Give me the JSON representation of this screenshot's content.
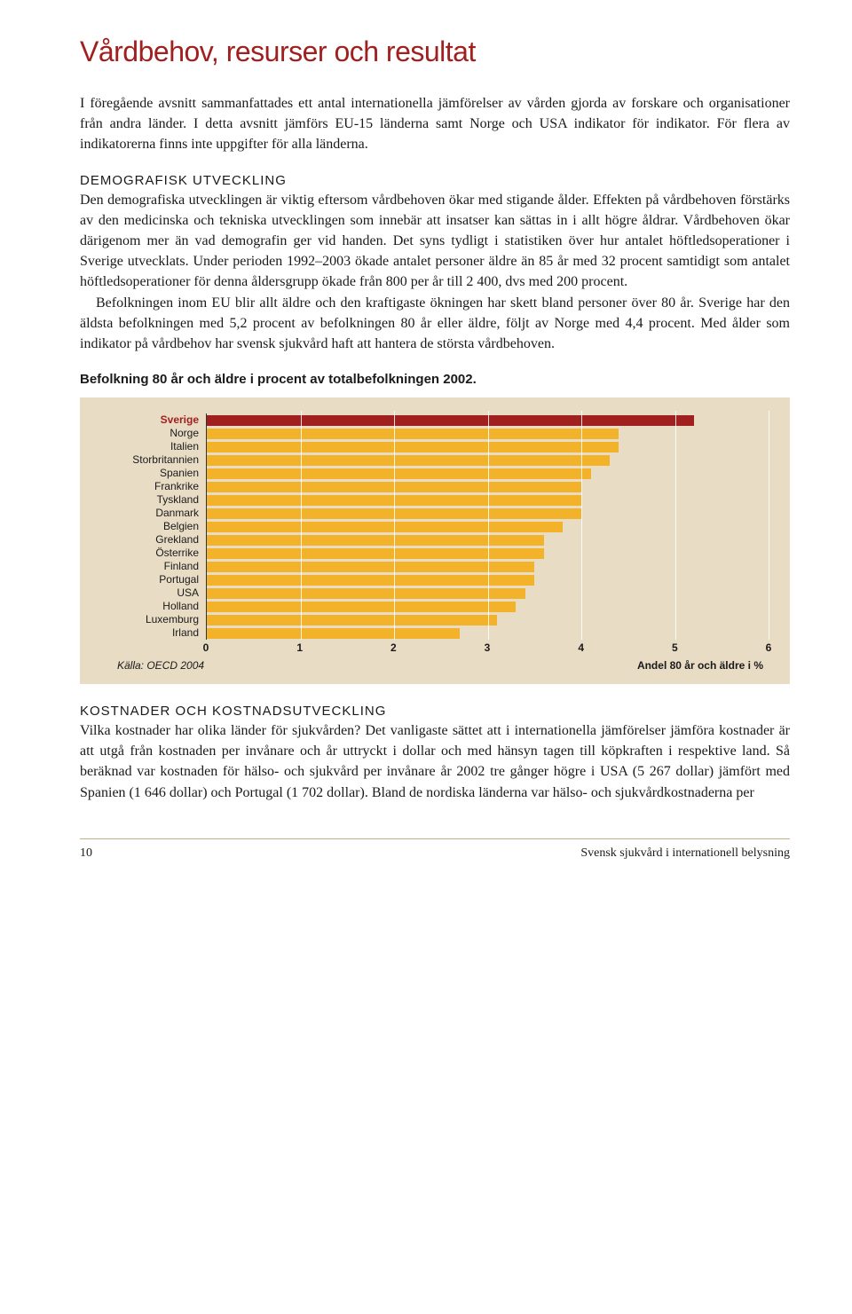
{
  "title": "Vårdbehov, resurser och resultat",
  "intro": "I föregående avsnitt sammanfattades ett antal internationella jämförelser av vården gjorda av forskare och organisationer från andra länder. I detta avsnitt jämförs EU-15 länderna samt Norge och USA indikator för indikator. För flera av indikatorerna finns inte uppgifter för alla länderna.",
  "sec1_heading": "DEMOGRAFISK UTVECKLING",
  "sec1_p1": "Den demografiska utvecklingen är viktig eftersom vårdbehoven ökar med stigande ålder. Effekten på vårdbehoven förstärks av den medicinska och tekniska utvecklingen som innebär att insatser kan sättas in i allt högre åldrar. Vårdbehoven ökar därigenom mer än vad demografin ger vid handen. Det syns tydligt i statistiken över hur antalet höftledsoperationer i Sverige utvecklats. Under perioden 1992–2003 ökade antalet personer äldre än 85 år med 32 procent samtidigt som antalet höftledsoperationer för denna åldersgrupp ökade från 800 per år till 2 400, dvs med 200 procent.",
  "sec1_p2": "Befolkningen inom EU blir allt äldre och den kraftigaste ökningen har skett bland personer över 80 år. Sverige har den äldsta befolkningen med 5,2 procent av befolkningen 80 år eller äldre, följt av Norge med 4,4 procent. Med ålder som indikator på vårdbehov har svensk sjukvård haft att hantera de största vårdbehoven.",
  "chart": {
    "caption": "Befolkning 80 år och äldre i procent av totalbefolkningen 2002.",
    "source": "Källa: OECD 2004",
    "axis_title": "Andel 80 år och äldre i %",
    "xmax": 6,
    "xticks": [
      0,
      1,
      2,
      3,
      4,
      5,
      6
    ],
    "highlight_color": "#a02020",
    "bar_color": "#f2b32a",
    "panel_bg": "#e8dcc5",
    "gridline_color": "#ffffff",
    "categories": [
      {
        "label": "Sverige",
        "value": 5.2,
        "highlight": true
      },
      {
        "label": "Norge",
        "value": 4.4,
        "highlight": false
      },
      {
        "label": "Italien",
        "value": 4.4,
        "highlight": false
      },
      {
        "label": "Storbritannien",
        "value": 4.3,
        "highlight": false
      },
      {
        "label": "Spanien",
        "value": 4.1,
        "highlight": false
      },
      {
        "label": "Frankrike",
        "value": 4.0,
        "highlight": false
      },
      {
        "label": "Tyskland",
        "value": 4.0,
        "highlight": false
      },
      {
        "label": "Danmark",
        "value": 4.0,
        "highlight": false
      },
      {
        "label": "Belgien",
        "value": 3.8,
        "highlight": false
      },
      {
        "label": "Grekland",
        "value": 3.6,
        "highlight": false
      },
      {
        "label": "Österrike",
        "value": 3.6,
        "highlight": false
      },
      {
        "label": "Finland",
        "value": 3.5,
        "highlight": false
      },
      {
        "label": "Portugal",
        "value": 3.5,
        "highlight": false
      },
      {
        "label": "USA",
        "value": 3.4,
        "highlight": false
      },
      {
        "label": "Holland",
        "value": 3.3,
        "highlight": false
      },
      {
        "label": "Luxemburg",
        "value": 3.1,
        "highlight": false
      },
      {
        "label": "Irland",
        "value": 2.7,
        "highlight": false
      }
    ]
  },
  "sec2_heading": "KOSTNADER OCH KOSTNADSUTVECKLING",
  "sec2_p1": "Vilka kostnader har olika länder för sjukvården? Det vanligaste sättet att i internationella jämförelser jämföra kostnader är att utgå från kostnaden per invånare och år uttryckt i dollar och med hänsyn tagen till köpkraften i respektive land. Så beräknad var kostnaden för hälso- och sjukvård per invånare år 2002 tre gånger högre i USA (5 267 dollar) jämfört med Spanien (1 646 dollar) och Portugal (1 702 dollar). Bland de nordiska länderna var hälso- och sjukvårdkostnaderna per",
  "footer": {
    "page": "10",
    "pub": "Svensk sjukvård i internationell belysning"
  }
}
